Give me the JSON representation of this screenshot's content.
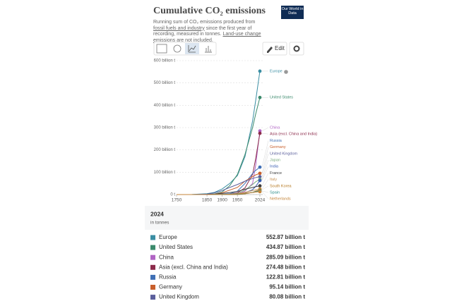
{
  "chart_data": {
    "type": "line",
    "title": "Cumulative CO₂ emissions",
    "logo": "Our World in Data",
    "subtitle": [
      "Running sum of CO₂ emissions produced from ",
      "fossil fuels and industry",
      " since the first year of recording, measured in tonnes. ",
      "Land-use change emissions",
      " are not included."
    ],
    "edit_button": "Edit",
    "x": [
      1750,
      1800,
      1850,
      1875,
      1900,
      1925,
      1950,
      1975,
      2000,
      2010,
      2024
    ],
    "xlim": [
      1750,
      2024
    ],
    "xticks": [
      1750,
      1850,
      1900,
      1950,
      2024
    ],
    "ylim": [
      0,
      600
    ],
    "yticks": [
      {
        "value": 0,
        "label": "0 t"
      },
      {
        "value": 100,
        "label": "100 billion t"
      },
      {
        "value": 200,
        "label": "200 billion t"
      },
      {
        "value": 300,
        "label": "300 billion t"
      },
      {
        "value": 400,
        "label": "400 billion t"
      },
      {
        "value": 500,
        "label": "500 billion t"
      },
      {
        "value": 600,
        "label": "600 billion t"
      }
    ],
    "grid": true,
    "series": [
      {
        "name": "Europe",
        "color": "#3a8ea3",
        "values": [
          0,
          0.5,
          4,
          10,
          25,
          50,
          85,
          170,
          330,
          420,
          552.87
        ],
        "value_label": "552.87 billion t"
      },
      {
        "name": "United States",
        "color": "#3b8a6c",
        "values": [
          0,
          0.05,
          0.5,
          3,
          12,
          40,
          90,
          180,
          300,
          360,
          434.87
        ],
        "value_label": "434.87 billion t"
      },
      {
        "name": "China",
        "color": "#b064c4",
        "values": [
          0,
          0,
          0,
          0,
          0.1,
          0.5,
          2,
          15,
          50,
          130,
          285.09
        ],
        "value_label": "285.09 billion t"
      },
      {
        "name": "Asia (excl. China and India)",
        "color": "#8c2b4b",
        "values": [
          0,
          0,
          0,
          0,
          0.5,
          2,
          8,
          30,
          90,
          160,
          274.48
        ],
        "value_label": "274.48 billion t"
      },
      {
        "name": "Russia",
        "color": "#3f6fb5",
        "values": [
          0,
          0,
          0,
          0.3,
          1.5,
          4,
          15,
          50,
          95,
          108,
          122.81
        ],
        "value_label": "122.81 billion t"
      },
      {
        "name": "Germany",
        "color": "#c85f2c",
        "values": [
          0,
          0,
          0.2,
          2,
          8,
          20,
          32,
          60,
          80,
          88,
          95.14
        ],
        "value_label": "95.14 billion t"
      },
      {
        "name": "United Kingdom",
        "color": "#5b5f9c",
        "values": [
          0,
          0.1,
          2,
          8,
          18,
          32,
          45,
          60,
          72,
          76,
          80.08
        ],
        "value_label": "80.08 billion t"
      },
      {
        "name": "Japan",
        "color": "#7aab7f",
        "values": [
          0,
          0,
          0,
          0,
          0.5,
          2,
          5,
          20,
          45,
          57,
          68
        ]
      },
      {
        "name": "India",
        "color": "#365bb0",
        "values": [
          0,
          0,
          0,
          0,
          0.3,
          1,
          3,
          8,
          22,
          36,
          63
        ]
      },
      {
        "name": "France",
        "color": "#3c3c3c",
        "values": [
          0,
          0,
          0.3,
          2,
          5,
          9,
          14,
          24,
          32,
          35,
          39
        ]
      },
      {
        "name": "Italy",
        "color": "#c8955a",
        "values": [
          0,
          0,
          0,
          0.2,
          0.5,
          1.5,
          3,
          10,
          18,
          21,
          25
        ]
      },
      {
        "name": "South Korea",
        "color": "#b5781f",
        "values": [
          0,
          0,
          0,
          0,
          0,
          0,
          0.3,
          3,
          10,
          15,
          21
        ]
      },
      {
        "name": "Spain",
        "color": "#2f8f8b",
        "values": [
          0,
          0,
          0,
          0.1,
          0.3,
          1,
          2,
          5,
          10,
          13,
          16
        ]
      },
      {
        "name": "Netherlands",
        "color": "#c4853a",
        "values": [
          0,
          0,
          0,
          0.2,
          0.5,
          1.5,
          3,
          6,
          9,
          11,
          13
        ]
      }
    ],
    "table": {
      "year": "2024",
      "unit": "in tonnes"
    }
  }
}
